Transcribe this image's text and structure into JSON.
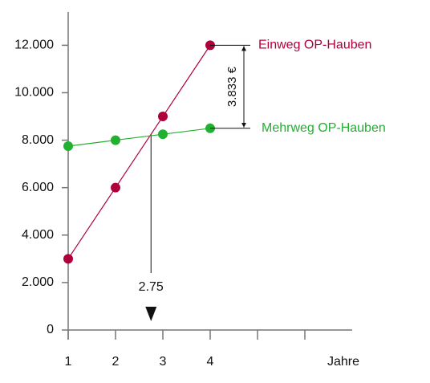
{
  "chart_data": {
    "type": "line",
    "x": [
      1,
      2,
      3,
      4
    ],
    "series": [
      {
        "name": "Einweg OP-Hauben",
        "color": "#b0003a",
        "values": [
          3000,
          6000,
          9000,
          12000
        ]
      },
      {
        "name": "Mehrweg OP-Hauben",
        "color": "#22b030",
        "values": [
          7750,
          8000,
          8250,
          8500
        ]
      }
    ],
    "xlabel": "Jahre",
    "xlim": [
      1,
      7
    ],
    "xticks": [
      1,
      2,
      3,
      4
    ],
    "xticks_unlabeled": [
      5,
      6
    ],
    "ylim": [
      0,
      13400
    ],
    "yticks": [
      0,
      {
        "value": 2000,
        "label": "2.000"
      },
      {
        "value": 4000,
        "label": "4.000"
      },
      {
        "value": 6000,
        "label": "6.000"
      },
      {
        "value": 8000,
        "label": "8.000"
      },
      {
        "value": 10000,
        "label": "10.000"
      },
      {
        "value": 12000,
        "label": "12.000"
      }
    ],
    "intersection_x": 2.75,
    "difference_label": "3.833 €"
  }
}
